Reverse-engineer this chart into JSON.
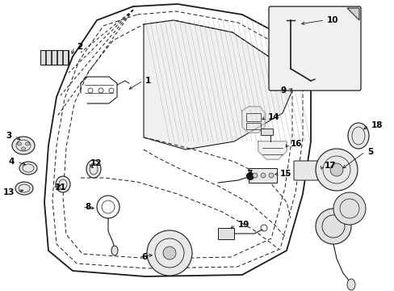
{
  "bg_color": "#ffffff",
  "fig_width": 4.89,
  "fig_height": 3.6,
  "dpi": 100,
  "line_color": "#1a1a1a",
  "label_fontsize": 7.5
}
